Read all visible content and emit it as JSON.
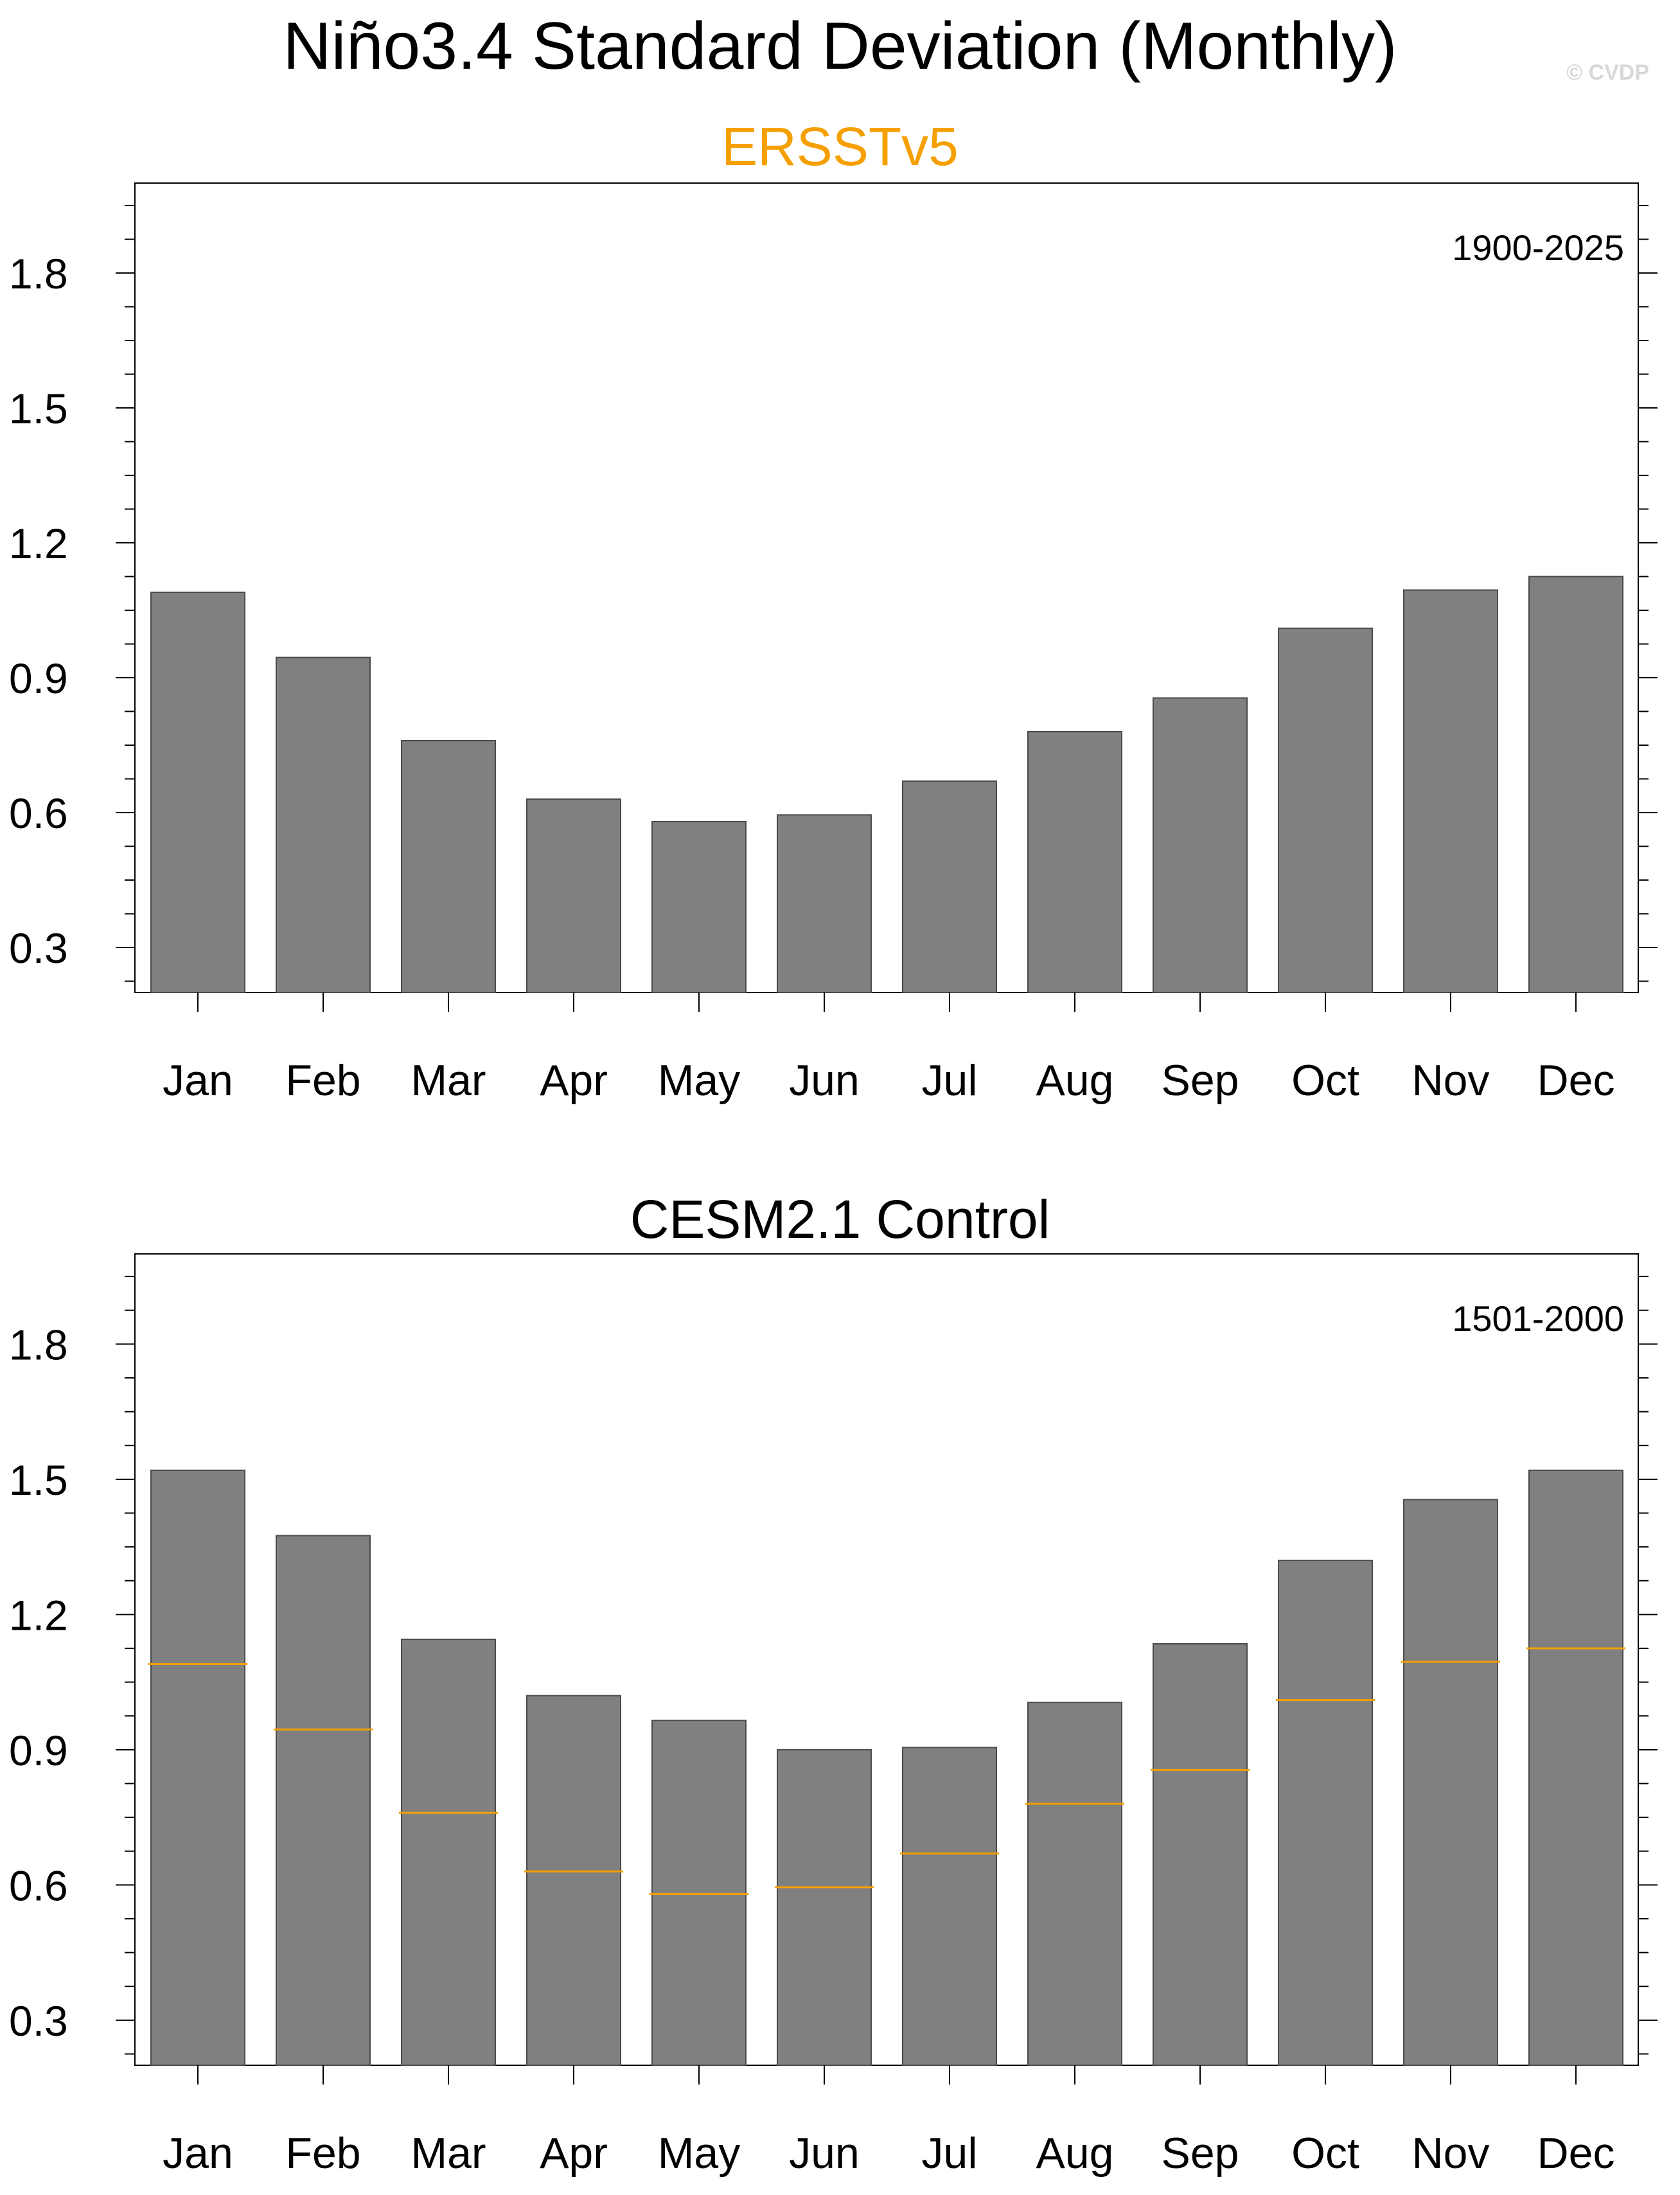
{
  "title": "Niño3.4 Standard Deviation (Monthly)",
  "copyright": "© CVDP",
  "colors": {
    "bar": "#808080",
    "bar_edge": "#4a4a4a",
    "reference_line": "#f5a000",
    "subtitle_obs": "#f5a000",
    "subtitle_model": "#000000"
  },
  "chart_data": [
    {
      "type": "bar",
      "title": "ERSSTv5",
      "period": "1900-2025",
      "categories": [
        "Jan",
        "Feb",
        "Mar",
        "Apr",
        "May",
        "Jun",
        "Jul",
        "Aug",
        "Sep",
        "Oct",
        "Nov",
        "Dec"
      ],
      "values": [
        1.09,
        0.945,
        0.76,
        0.63,
        0.58,
        0.595,
        0.67,
        0.78,
        0.855,
        1.01,
        1.095,
        1.125
      ],
      "ylim": [
        0.2,
        2.0
      ],
      "yticks": [
        "0.3",
        "0.6",
        "0.9",
        "1.2",
        "1.5",
        "1.8"
      ],
      "xlabel": "",
      "ylabel": ""
    },
    {
      "type": "bar",
      "title": "CESM2.1 Control",
      "period": "1501-2000",
      "categories": [
        "Jan",
        "Feb",
        "Mar",
        "Apr",
        "May",
        "Jun",
        "Jul",
        "Aug",
        "Sep",
        "Oct",
        "Nov",
        "Dec"
      ],
      "values": [
        1.52,
        1.375,
        1.145,
        1.02,
        0.965,
        0.9,
        0.905,
        1.005,
        1.135,
        1.32,
        1.455,
        1.52
      ],
      "reference_values": [
        1.09,
        0.945,
        0.76,
        0.63,
        0.58,
        0.595,
        0.67,
        0.78,
        0.855,
        1.01,
        1.095,
        1.125
      ],
      "ylim": [
        0.2,
        2.0
      ],
      "yticks": [
        "0.3",
        "0.6",
        "0.9",
        "1.2",
        "1.5",
        "1.8"
      ],
      "xlabel": "",
      "ylabel": ""
    }
  ]
}
